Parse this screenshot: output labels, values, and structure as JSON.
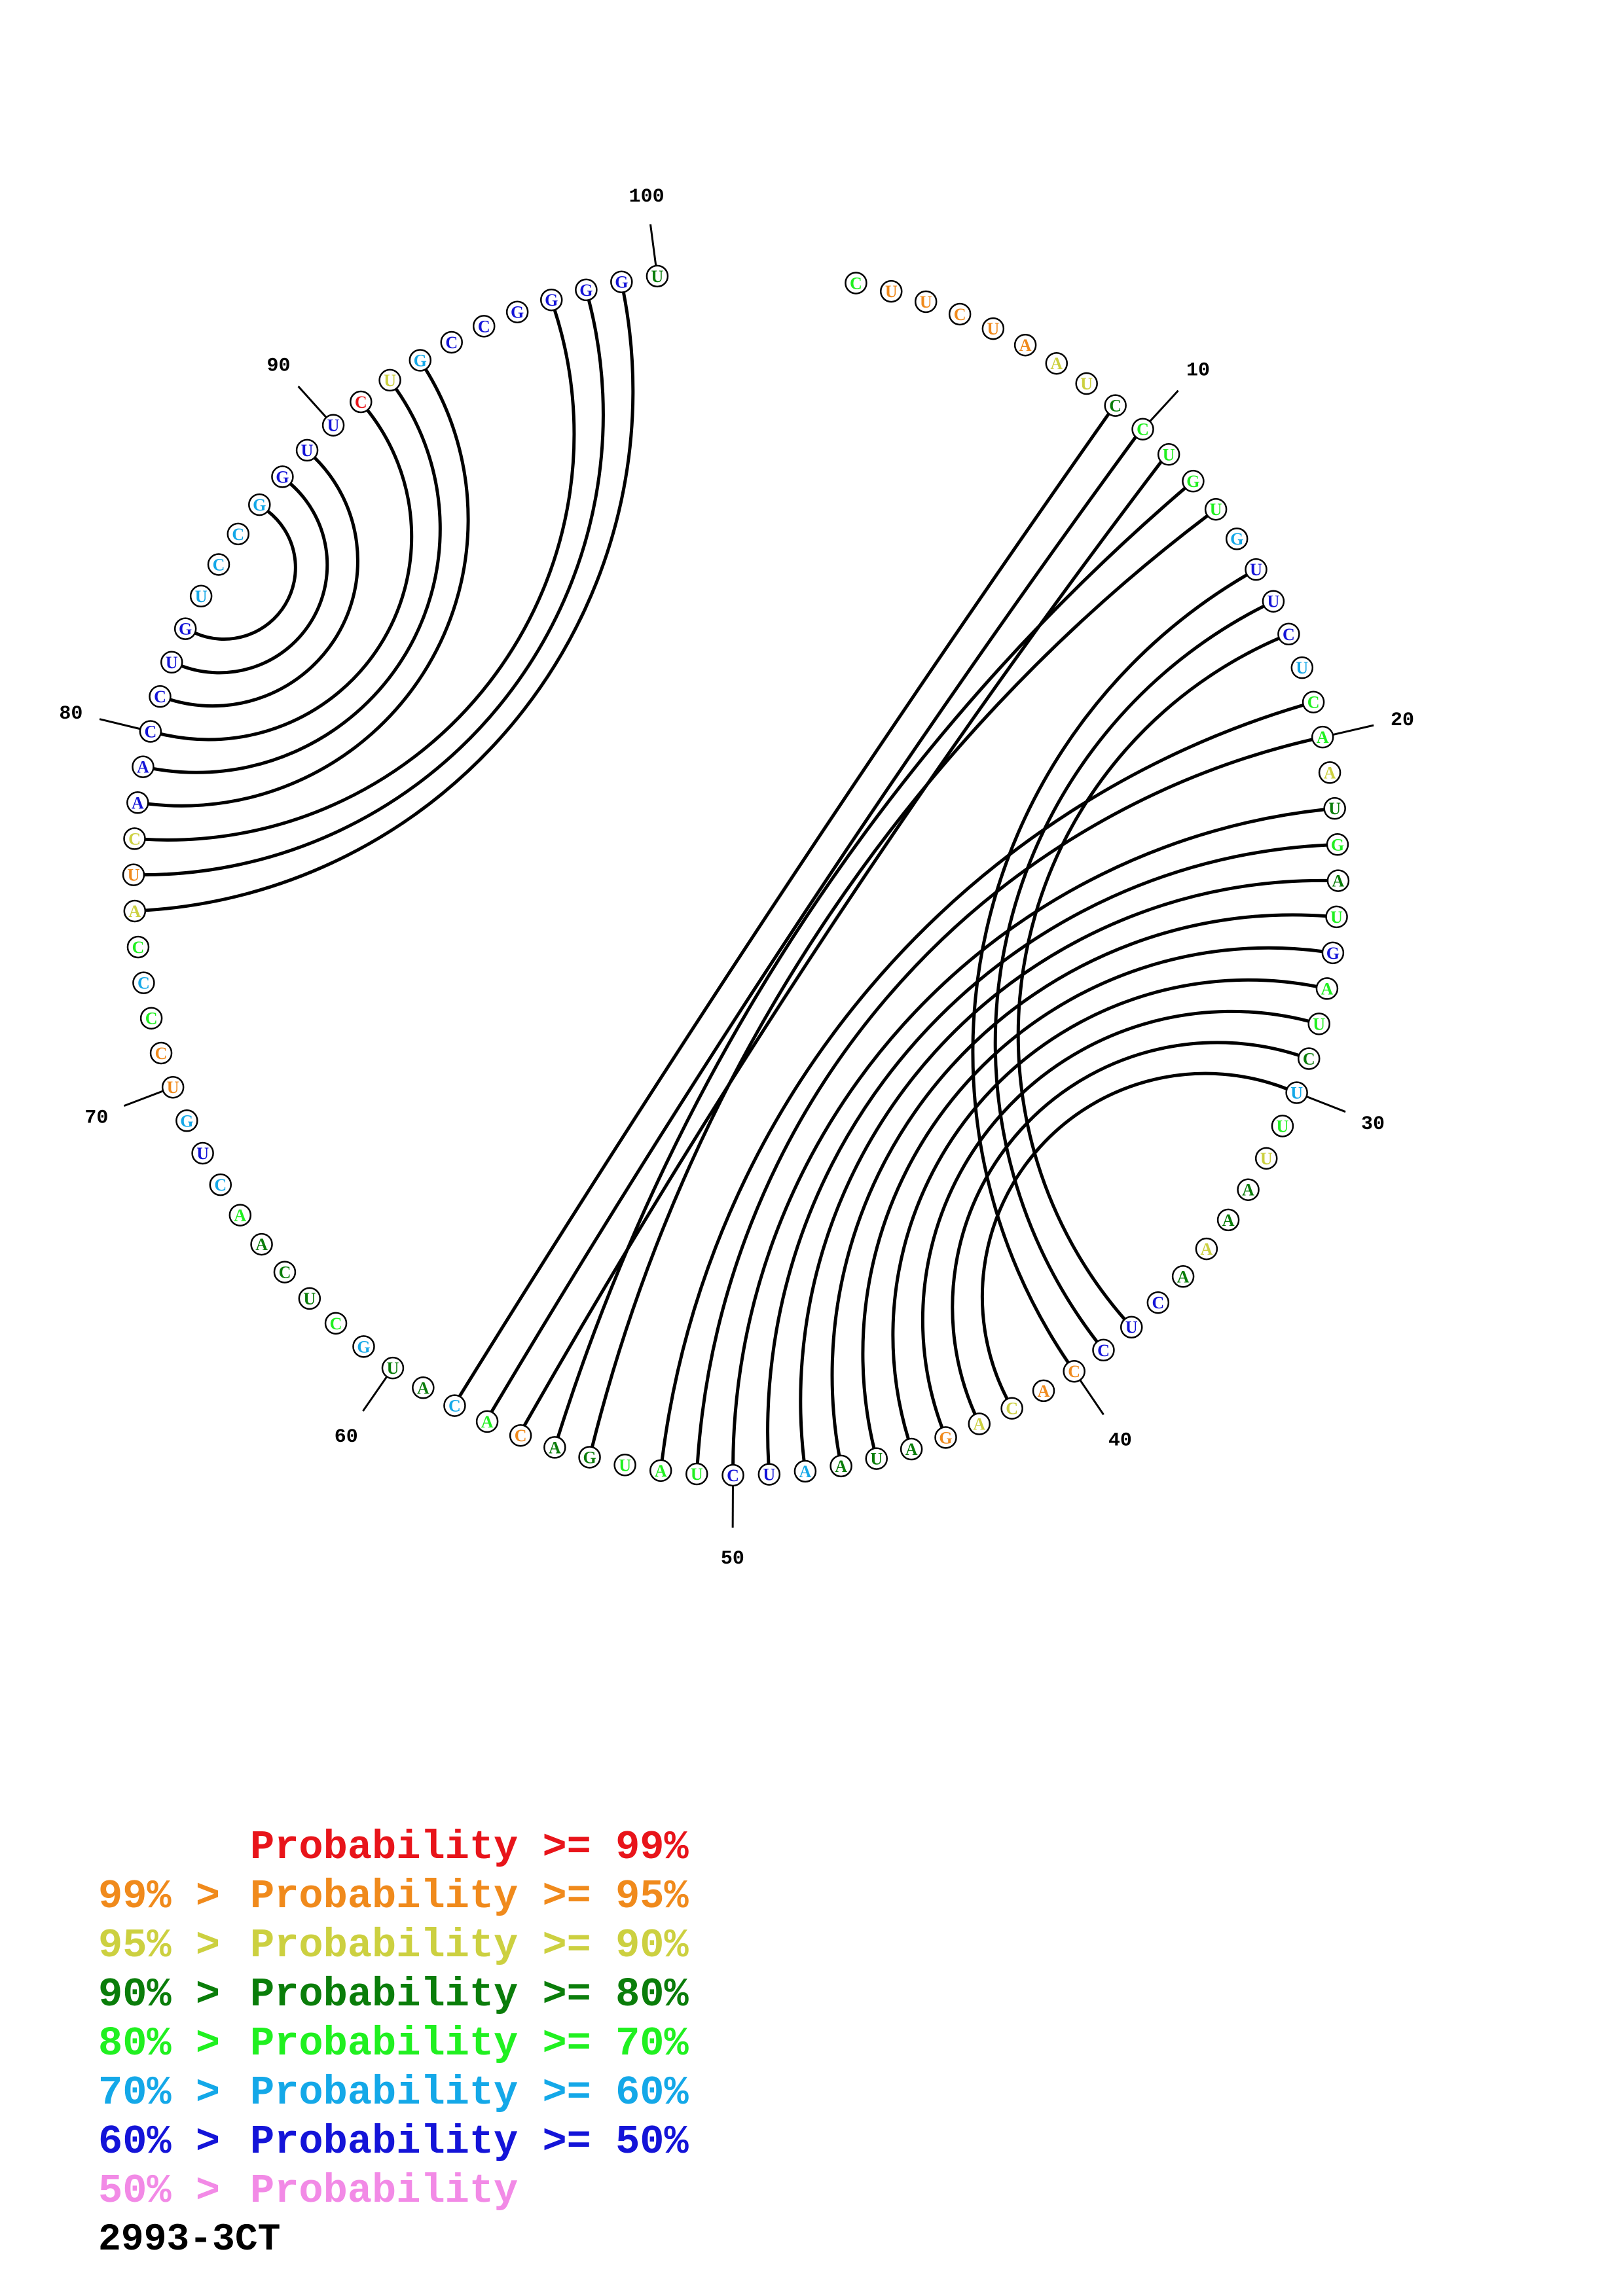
{
  "sequence": "CUUCUAAUCCUGUGUUCUCAAUGAUGAUCUUUAAAACUCCACAGAUAAUCUAUGACACAUGCUCAACUGUCCCCAUCAACCUGUCCGGUUCUGCCGGGGU",
  "probability_classes": [
    "p70",
    "p95",
    "p95",
    "p95",
    "p95",
    "p95",
    "p90",
    "p90",
    "p80",
    "p70",
    "p70",
    "p70",
    "p70",
    "p60",
    "p50",
    "p50",
    "p50",
    "p60",
    "p70",
    "p70",
    "p90",
    "p80",
    "p70",
    "p80",
    "p70",
    "p50",
    "p70",
    "p70",
    "p80",
    "p60",
    "p70",
    "p90",
    "p80",
    "p80",
    "p90",
    "p80",
    "p50",
    "p50",
    "p50",
    "p95",
    "p95",
    "p90",
    "p90",
    "p95",
    "p80",
    "p80",
    "p80",
    "p60",
    "p50",
    "p50",
    "p70",
    "p70",
    "p70",
    "p80",
    "p80",
    "p95",
    "p70",
    "p60",
    "p80",
    "p80",
    "p60",
    "p70",
    "p80",
    "p80",
    "p80",
    "p70",
    "p60",
    "p50",
    "p60",
    "p95",
    "p95",
    "p70",
    "p60",
    "p70",
    "p90",
    "p95",
    "p90",
    "p50",
    "p50",
    "p50",
    "p50",
    "p50",
    "p50",
    "p60",
    "p60",
    "p60",
    "p60",
    "p50",
    "p50",
    "p50",
    "p99",
    "p90",
    "p60",
    "p50",
    "p50",
    "p50",
    "p50",
    "p50",
    "p50",
    "p80"
  ],
  "colors": {
    "p99": "#e8141a",
    "p95": "#f08a1c",
    "p90": "#ccd040",
    "p80": "#0a7d0a",
    "p70": "#20f020",
    "p60": "#14a8e8",
    "p50": "#1414d8",
    "plow": "#f28ae6"
  },
  "base_pairs": [
    [
      9,
      58
    ],
    [
      10,
      57
    ],
    [
      11,
      56
    ],
    [
      12,
      55
    ],
    [
      13,
      54
    ],
    [
      15,
      40
    ],
    [
      16,
      39
    ],
    [
      17,
      38
    ],
    [
      19,
      52
    ],
    [
      20,
      51
    ],
    [
      22,
      50
    ],
    [
      23,
      49
    ],
    [
      24,
      48
    ],
    [
      25,
      47
    ],
    [
      26,
      46
    ],
    [
      27,
      45
    ],
    [
      28,
      44
    ],
    [
      29,
      43
    ],
    [
      30,
      42
    ],
    [
      81,
      89
    ],
    [
      82,
      88
    ],
    [
      83,
      87
    ],
    [
      78,
      93
    ],
    [
      79,
      92
    ],
    [
      80,
      91
    ],
    [
      75,
      99
    ],
    [
      76,
      98
    ],
    [
      77,
      97
    ]
  ],
  "position_labels": [
    {
      "index": 10,
      "text": "10"
    },
    {
      "index": 20,
      "text": "20"
    },
    {
      "index": 30,
      "text": "30"
    },
    {
      "index": 40,
      "text": "40"
    },
    {
      "index": 50,
      "text": "50"
    },
    {
      "index": 60,
      "text": "60"
    },
    {
      "index": 70,
      "text": "70"
    },
    {
      "index": 80,
      "text": "80"
    },
    {
      "index": 90,
      "text": "90"
    },
    {
      "index": 100,
      "text": "100"
    }
  ],
  "legend": [
    {
      "range": "",
      "text": "Probability >= 99%",
      "color": "#e8141a"
    },
    {
      "range": "99% > ",
      "text": "Probability >= 95%",
      "color": "#f08a1c"
    },
    {
      "range": "95% > ",
      "text": "Probability >= 90%",
      "color": "#ccd040"
    },
    {
      "range": "90% > ",
      "text": "Probability >= 80%",
      "color": "#0a7d0a"
    },
    {
      "range": "80% > ",
      "text": "Probability >= 70%",
      "color": "#20f020"
    },
    {
      "range": "70% > ",
      "text": "Probability >= 60%",
      "color": "#14a8e8"
    },
    {
      "range": "60% > ",
      "text": "Probability >= 50%",
      "color": "#1414d8"
    },
    {
      "range": "50% > ",
      "text": "Probability",
      "color": "#f28ae6"
    }
  ],
  "molecule_id": "2993-3CT"
}
